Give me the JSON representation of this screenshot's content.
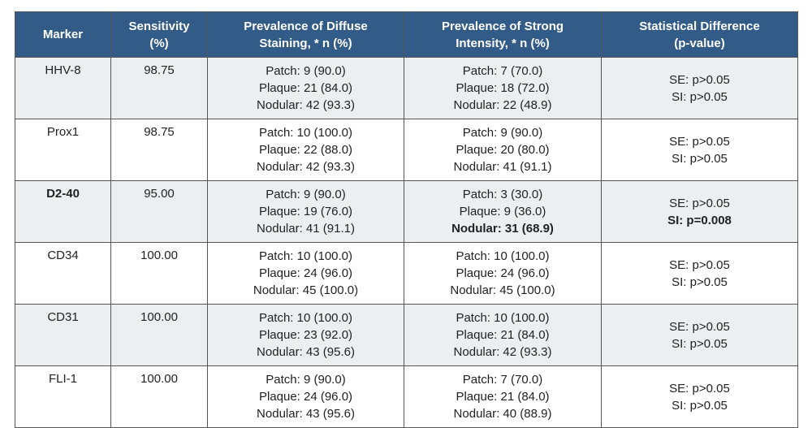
{
  "table": {
    "header": [
      [
        "Marker"
      ],
      [
        "Sensitivity",
        "(%)"
      ],
      [
        "Prevalence of Diffuse",
        "Staining, * n (%)"
      ],
      [
        "Prevalence of Strong",
        "Intensity, * n (%)"
      ],
      [
        "Statistical Difference",
        "(p-value)"
      ]
    ],
    "rows": [
      {
        "marker": "HHV-8",
        "sensitivity": "98.75",
        "diffuse": [
          "Patch: 9 (90.0)",
          "Plaque: 21 (84.0)",
          "Nodular: 42 (93.3)"
        ],
        "strong": [
          "Patch: 7 (70.0)",
          "Plaque: 18 (72.0)",
          "Nodular: 22 (48.9)"
        ],
        "difference": [
          "SE: p>0.05",
          "SI: p>0.05"
        ]
      },
      {
        "marker": "Prox1",
        "sensitivity": "98.75",
        "diffuse": [
          "Patch: 10 (100.0)",
          "Plaque: 22 (88.0)",
          "Nodular: 42 (93.3)"
        ],
        "strong": [
          "Patch: 9 (90.0)",
          "Plaque: 20 (80.0)",
          "Nodular: 41 (91.1)"
        ],
        "difference": [
          "SE: p>0.05",
          "SI: p>0.05"
        ]
      },
      {
        "marker": "D2-40",
        "sensitivity": "95.00",
        "diffuse": [
          "Patch: 9 (90.0)",
          "Plaque: 19 (76.0)",
          "Nodular: 41 (91.1)"
        ],
        "strong": [
          "Patch: 3 (30.0)",
          "Plaque: 9 (36.0)",
          "Nodular: 31 (68.9)"
        ],
        "difference": [
          "SE: p>0.05",
          "SI: p=0.008"
        ]
      },
      {
        "marker": "CD34",
        "sensitivity": "100.00",
        "diffuse": [
          "Patch: 10 (100.0)",
          "Plaque: 24 (96.0)",
          "Nodular: 45 (100.0)"
        ],
        "strong": [
          "Patch: 10 (100.0)",
          "Plaque: 24 (96.0)",
          "Nodular: 45 (100.0)"
        ],
        "difference": [
          "SE: p>0.05",
          "SI: p>0.05"
        ]
      },
      {
        "marker": "CD31",
        "sensitivity": "100.00",
        "diffuse": [
          "Patch: 10 (100.0)",
          "Plaque: 23 (92.0)",
          "Nodular: 43 (95.6)"
        ],
        "strong": [
          "Patch: 10 (100.0)",
          "Plaque: 21 (84.0)",
          "Nodular: 42 (93.3)"
        ],
        "difference": [
          "SE: p>0.05",
          "SI: p>0.05"
        ]
      },
      {
        "marker": "FLI-1",
        "sensitivity": "100.00",
        "diffuse": [
          "Patch: 9 (90.0)",
          "Plaque: 24 (96.0)",
          "Nodular: 43 (95.6)"
        ],
        "strong": [
          "Patch: 7 (70.0)",
          "Plaque: 21 (84.0)",
          "Nodular: 40 (88.9)"
        ],
        "difference": [
          "SE: p>0.05",
          "SI: p>0.05"
        ]
      }
    ]
  }
}
